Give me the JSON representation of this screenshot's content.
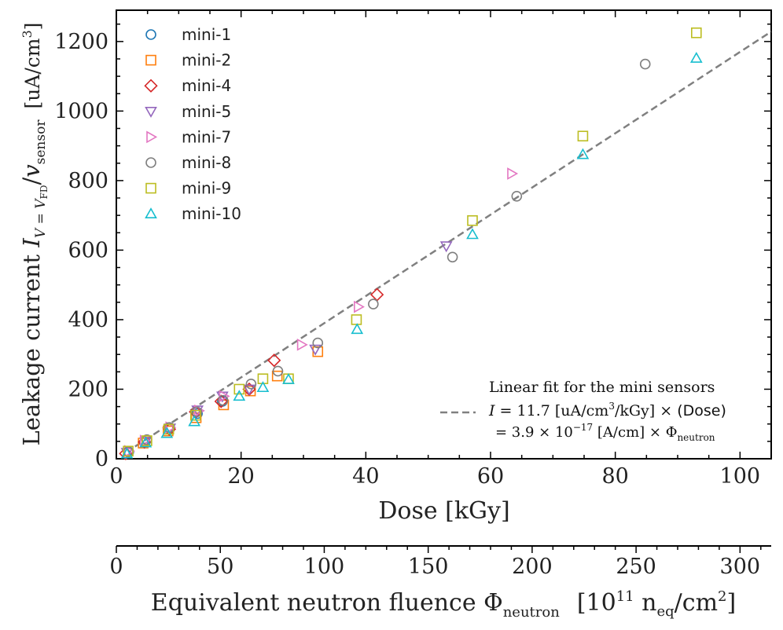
{
  "chart_data": {
    "type": "scatter",
    "xlabel": "Dose [kGy]",
    "ylabel": {
      "prefix": "Leakage current ",
      "var_I": "I",
      "sub_I": "V = V",
      "sub_I2": "FD",
      "slash": "/",
      "var_v": "v",
      "sub_v": "sensor",
      "unit": "[uA/cm",
      "unit_sup": "3",
      "unit_close": "]"
    },
    "xlim": [
      0,
      105
    ],
    "ylim": [
      0,
      1290
    ],
    "x_ticks": [
      "0",
      "20",
      "40",
      "60",
      "80",
      "100"
    ],
    "y_ticks": [
      "0",
      "200",
      "400",
      "600",
      "800",
      "1000",
      "1200"
    ],
    "secondary_axis": {
      "label_main": "Equivalent neutron fluence Φ",
      "label_sub": "neutron",
      "label_unit_open": "[10",
      "label_unit_sup": "11",
      "label_unit_n": " n",
      "label_unit_neq": "eq",
      "label_unit_cm": "/cm",
      "label_unit_cm_sup": "2",
      "label_unit_close": "]",
      "ticks": [
        "0",
        "50",
        "100",
        "150",
        "200",
        "250",
        "300"
      ],
      "range": [
        0,
        315
      ]
    },
    "series": [
      {
        "name": "mini-1",
        "marker": "circle",
        "color": "#1f77b4",
        "points": [
          [
            2.0,
            20
          ],
          [
            4.6,
            48
          ],
          [
            8.5,
            85
          ],
          [
            13.0,
            130
          ],
          [
            17.0,
            165
          ]
        ]
      },
      {
        "name": "mini-2",
        "marker": "square",
        "color": "#ff7f0e",
        "points": [
          [
            4.3,
            45
          ],
          [
            8.3,
            80
          ],
          [
            12.8,
            118
          ],
          [
            17.2,
            155
          ],
          [
            21.5,
            195
          ],
          [
            25.8,
            238
          ],
          [
            32.3,
            308
          ]
        ]
      },
      {
        "name": "mini-4",
        "marker": "diamond",
        "color": "#d62728",
        "points": [
          [
            1.5,
            15
          ],
          [
            4.5,
            48
          ],
          [
            8.5,
            85
          ],
          [
            12.7,
            135
          ],
          [
            16.8,
            165
          ],
          [
            21.3,
            200
          ],
          [
            25.3,
            283
          ],
          [
            41.8,
            472
          ]
        ]
      },
      {
        "name": "mini-5",
        "marker": "triangle-down",
        "color": "#9467bd",
        "points": [
          [
            1.7,
            18
          ],
          [
            4.7,
            50
          ],
          [
            8.6,
            88
          ],
          [
            13.0,
            140
          ],
          [
            17.0,
            180
          ],
          [
            21.3,
            200
          ],
          [
            31.9,
            315
          ],
          [
            52.9,
            612
          ]
        ]
      },
      {
        "name": "mini-7",
        "marker": "triangle-right",
        "color": "#e377c2",
        "points": [
          [
            2.0,
            22
          ],
          [
            4.5,
            52
          ],
          [
            8.6,
            90
          ],
          [
            13.2,
            138
          ],
          [
            17.2,
            180
          ],
          [
            29.7,
            328
          ],
          [
            38.8,
            437
          ],
          [
            63.4,
            820
          ]
        ]
      },
      {
        "name": "mini-8",
        "marker": "circle",
        "color": "#7f7f7f",
        "points": [
          [
            1.9,
            20
          ],
          [
            4.9,
            55
          ],
          [
            8.5,
            90
          ],
          [
            12.9,
            135
          ],
          [
            17.1,
            168
          ],
          [
            21.6,
            215
          ],
          [
            25.9,
            252
          ],
          [
            32.3,
            333
          ],
          [
            41.2,
            445
          ],
          [
            53.9,
            580
          ],
          [
            64.2,
            755
          ],
          [
            84.8,
            1135
          ]
        ]
      },
      {
        "name": "mini-9",
        "marker": "square",
        "color": "#bcbd22",
        "points": [
          [
            1.9,
            22
          ],
          [
            4.9,
            52
          ],
          [
            8.4,
            85
          ],
          [
            12.7,
            125
          ],
          [
            19.7,
            200
          ],
          [
            23.5,
            230
          ],
          [
            27.6,
            230
          ],
          [
            38.5,
            400
          ],
          [
            57.1,
            685
          ],
          [
            74.8,
            928
          ],
          [
            93.0,
            1225
          ]
        ]
      },
      {
        "name": "mini-10",
        "marker": "triangle-up",
        "color": "#17becf",
        "points": [
          [
            1.7,
            14
          ],
          [
            4.7,
            46
          ],
          [
            8.1,
            73
          ],
          [
            12.5,
            107
          ],
          [
            19.7,
            180
          ],
          [
            23.5,
            205
          ],
          [
            27.6,
            228
          ],
          [
            38.6,
            372
          ],
          [
            57.1,
            645
          ],
          [
            74.8,
            875
          ],
          [
            93.0,
            1152
          ]
        ]
      }
    ],
    "fit": {
      "slope": 11.7,
      "range": [
        0,
        105
      ],
      "color": "#808080",
      "title": "Linear fit for the mini sensors",
      "eq1": {
        "I": "I",
        "equals_num": " = 11.7",
        "unit": " [uA/cm",
        "unit_sup": "3",
        "unit_tail": "/kGy] × ",
        "dose": "(Dose)"
      },
      "eq2": {
        "equals": "= 3.9 × 10",
        "exp": "−17",
        "unit": " [A/cm] × Φ",
        "sub": "neutron"
      }
    }
  }
}
